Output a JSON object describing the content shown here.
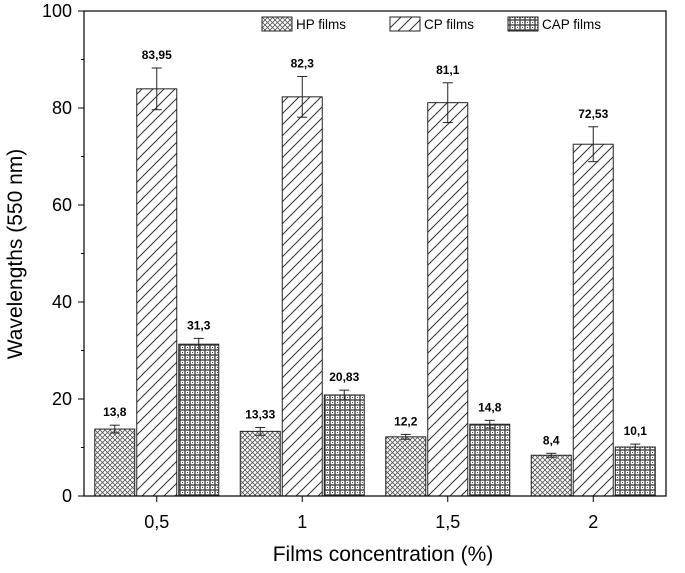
{
  "chart_data": {
    "type": "bar",
    "title": "",
    "xlabel": "Films concentration (%)",
    "ylabel": "Wavelengths (550 nm)",
    "ylim": [
      0,
      100
    ],
    "yticks": [
      0,
      20,
      40,
      60,
      80,
      100
    ],
    "categories": [
      "0,5",
      "1",
      "1,5",
      "2"
    ],
    "legend_position": "top-right",
    "series": [
      {
        "name": "HP films",
        "pattern": "crosshatch",
        "values": [
          13.8,
          13.33,
          12.2,
          8.4
        ],
        "errors": [
          0.8,
          0.8,
          0.5,
          0.4
        ],
        "labels": [
          "13,8",
          "13,33",
          "12,2",
          "8,4"
        ]
      },
      {
        "name": "CP films",
        "pattern": "diagonal",
        "values": [
          83.95,
          82.3,
          81.1,
          72.53
        ],
        "errors": [
          4.3,
          4.2,
          4.1,
          3.6
        ],
        "labels": [
          "83,95",
          "82,3",
          "81,1",
          "72,53"
        ]
      },
      {
        "name": "CAP films",
        "pattern": "grid",
        "values": [
          31.3,
          20.83,
          14.8,
          10.1
        ],
        "errors": [
          1.2,
          1.0,
          0.8,
          0.6
        ],
        "labels": [
          "31,3",
          "20,83",
          "14,8",
          "10,1"
        ]
      }
    ]
  }
}
